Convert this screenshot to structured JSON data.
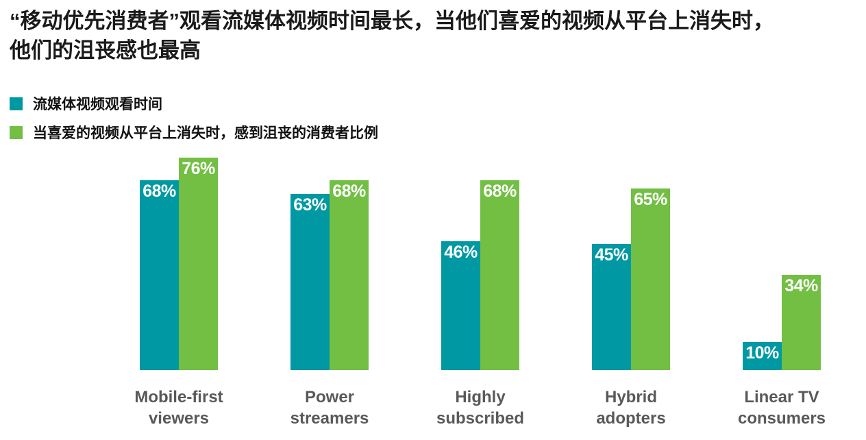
{
  "title": {
    "lines": [
      "“移动优先消费者”观看流媒体视频时间最长，当他们喜爱的视频从平台上消失时，",
      "他们的沮丧感也最高"
    ]
  },
  "chart_data": {
    "type": "bar",
    "categories": [
      "Mobile-first viewers",
      "Power streamers",
      "Highly subscribed",
      "Hybrid adopters",
      "Linear TV consumers"
    ],
    "series": [
      {
        "name": "流媒体视频观看时间",
        "color": "#0099A3",
        "values": [
          68,
          63,
          46,
          45,
          10
        ]
      },
      {
        "name": "当喜爱的视频从平台上消失时，感到沮丧的消费者比例",
        "color": "#72BF44",
        "values": [
          76,
          68,
          68,
          65,
          34
        ]
      }
    ],
    "value_suffix": "%",
    "value_labels": "inside-top",
    "ylim": [
      0,
      76
    ],
    "grid": false,
    "axes_visible": false,
    "legend_position": "top-left"
  },
  "colors": {
    "background": "#FFFFFF",
    "title_text": "#1A1A1A",
    "legend_text": "#111111",
    "category_label_text": "#58595B",
    "bar_value_text": "#FFFFFF"
  }
}
